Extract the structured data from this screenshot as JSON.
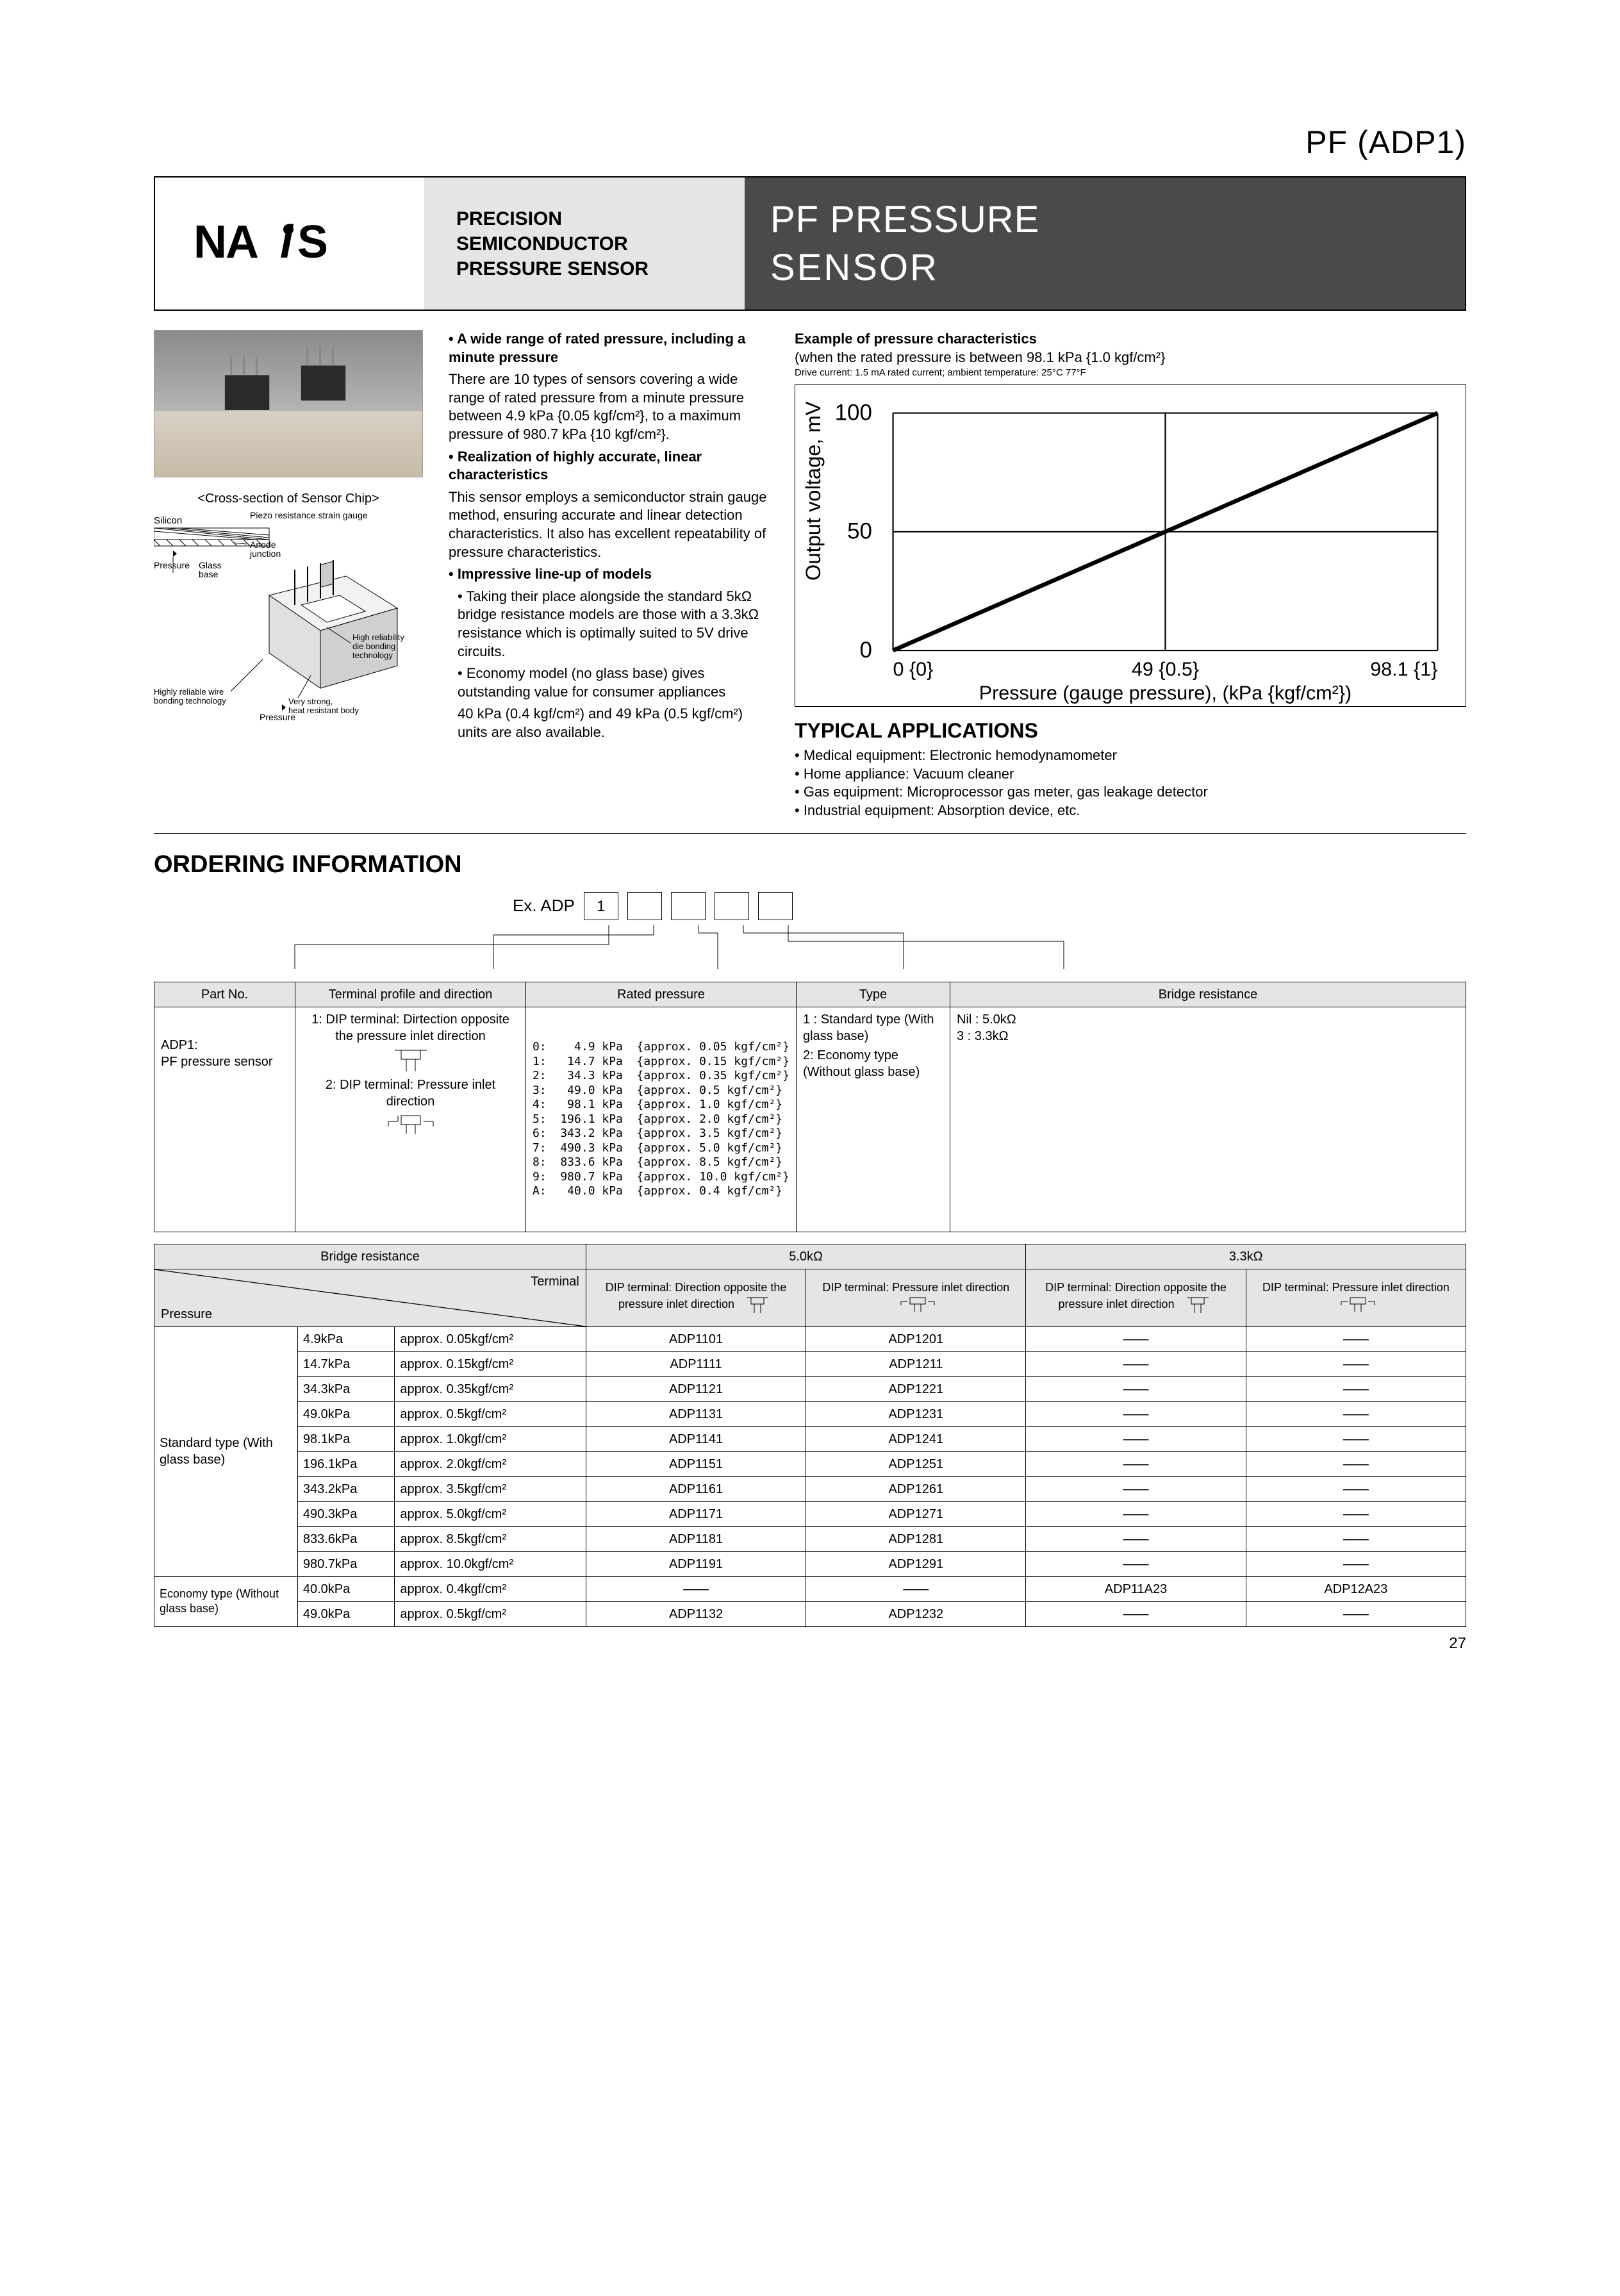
{
  "top_label": "PF (ADP1)",
  "subtitle": {
    "l1": "PRECISION",
    "l2": "SEMICONDUCTOR",
    "l3": "PRESSURE SENSOR"
  },
  "title": {
    "l1": "PF PRESSURE",
    "l2": "SENSOR"
  },
  "chip_label": "<Cross-section of Sensor Chip>",
  "diagram_labels": {
    "silicon": "Silicon",
    "piezo": "Piezo resistance strain gauge",
    "anode": "Anode junction",
    "pressure": "Pressure",
    "glass": "Glass base",
    "hr_die": "High reliability die bonding technology",
    "wire": "Highly reliable wire bonding technology",
    "strong": "Very strong, heat resistant body",
    "press2": "Pressure"
  },
  "features": {
    "f1_t": "• A wide range of rated pressure, including a minute pressure",
    "f1_b": "There are 10 types of sensors covering a wide range of rated pressure from a minute pressure between 4.9 kPa {0.05 kgf/cm²}, to a maximum pressure of 980.7 kPa {10 kgf/cm²}.",
    "f2_t": "• Realization of highly accurate, linear characteristics",
    "f2_b": "This sensor employs a semiconductor strain gauge method, ensuring accurate and linear detection characteristics. It also has excellent repeatability of pressure characteristics.",
    "f3_t": "• Impressive line-up of models",
    "f3_s1": "• Taking their place alongside the standard 5kΩ bridge resistance models are those with a 3.3kΩ resistance which is optimally suited to 5V drive circuits.",
    "f3_s2": "• Economy model (no glass base) gives outstanding value for consumer appliances",
    "f3_s3": "40 kPa (0.4 kgf/cm²) and 49 kPa (0.5 kgf/cm²) units are also available."
  },
  "example": {
    "title": "Example of pressure characteristics",
    "sub": "(when the rated pressure is between 98.1 kPa {1.0 kgf/cm²}",
    "cond": "Drive current: 1.5 mA rated current; ambient temperature: 25°C 77°F",
    "ylabel": "Output voltage, mV",
    "xlabel": "Pressure (gauge pressure), (kPa {kgf/cm²})",
    "yticks": [
      "0",
      "50",
      "100"
    ],
    "xticks": [
      "0 {0}",
      "49 {0.5}",
      "98.1 {1}"
    ]
  },
  "apps": {
    "title": "TYPICAL APPLICATIONS",
    "items": [
      "• Medical equipment: Electronic hemodynamometer",
      "• Home appliance: Vacuum cleaner",
      "• Gas equipment: Microprocessor gas meter, gas leakage detector",
      "• Industrial equipment: Absorption device, etc."
    ]
  },
  "ordering": {
    "title": "ORDERING INFORMATION",
    "ex_label": "Ex.  ADP",
    "box1": "1"
  },
  "info_table": {
    "headers": [
      "Part No.",
      "Terminal profile and direction",
      "Rated pressure",
      "Type",
      "Bridge resistance"
    ],
    "partno": {
      "l1": "ADP1:",
      "l2": "PF pressure sensor"
    },
    "term": {
      "t1": "1: DIP terminal: Dirtection opposite the pressure inlet direction",
      "t2": "2: DIP terminal: Pressure inlet direction"
    },
    "rated": [
      "0:    4.9 kPa  {approx. 0.05 kgf/cm²}",
      "1:   14.7 kPa  {approx. 0.15 kgf/cm²}",
      "2:   34.3 kPa  {approx. 0.35 kgf/cm²}",
      "3:   49.0 kPa  {approx. 0.5 kgf/cm²}",
      "4:   98.1 kPa  {approx. 1.0 kgf/cm²}",
      "5:  196.1 kPa  {approx. 2.0 kgf/cm²}",
      "6:  343.2 kPa  {approx. 3.5 kgf/cm²}",
      "7:  490.3 kPa  {approx. 5.0 kgf/cm²}",
      "8:  833.6 kPa  {approx. 8.5 kgf/cm²}",
      "9:  980.7 kPa  {approx. 10.0 kgf/cm²}",
      "A:   40.0 kPa  {approx. 0.4 kgf/cm²}"
    ],
    "type": {
      "t1": "1 : Standard type (With glass base)",
      "t2": "2: Economy type (Without glass base)"
    },
    "bridge": {
      "b1": "Nil : 5.0kΩ",
      "b2": "3 : 3.3kΩ"
    }
  },
  "product_table": {
    "top_headers": {
      "br": "Bridge resistance",
      "r5": "5.0kΩ",
      "r33": "3.3kΩ"
    },
    "row2": {
      "term": "Terminal",
      "press": "Pressure"
    },
    "term_heads": {
      "opp": "DIP terminal: Direction opposite the pressure inlet direction",
      "inlet": "DIP terminal: Pressure inlet direction"
    },
    "groups": {
      "std": "Standard type (With glass base)",
      "econ": "Economy type (Without glass base)"
    },
    "rows": [
      {
        "g": "std",
        "p": "4.9kPa",
        "a": "approx. 0.05kgf/cm²",
        "c1": "ADP1101",
        "c2": "ADP1201",
        "c3": "——",
        "c4": "——"
      },
      {
        "g": "std",
        "p": "14.7kPa",
        "a": "approx. 0.15kgf/cm²",
        "c1": "ADP1111",
        "c2": "ADP1211",
        "c3": "——",
        "c4": "——"
      },
      {
        "g": "std",
        "p": "34.3kPa",
        "a": "approx. 0.35kgf/cm²",
        "c1": "ADP1121",
        "c2": "ADP1221",
        "c3": "——",
        "c4": "——"
      },
      {
        "g": "std",
        "p": "49.0kPa",
        "a": "approx. 0.5kgf/cm²",
        "c1": "ADP1131",
        "c2": "ADP1231",
        "c3": "——",
        "c4": "——"
      },
      {
        "g": "std",
        "p": "98.1kPa",
        "a": "approx. 1.0kgf/cm²",
        "c1": "ADP1141",
        "c2": "ADP1241",
        "c3": "——",
        "c4": "——"
      },
      {
        "g": "std",
        "p": "196.1kPa",
        "a": "approx. 2.0kgf/cm²",
        "c1": "ADP1151",
        "c2": "ADP1251",
        "c3": "——",
        "c4": "——"
      },
      {
        "g": "std",
        "p": "343.2kPa",
        "a": "approx. 3.5kgf/cm²",
        "c1": "ADP1161",
        "c2": "ADP1261",
        "c3": "——",
        "c4": "——"
      },
      {
        "g": "std",
        "p": "490.3kPa",
        "a": "approx. 5.0kgf/cm²",
        "c1": "ADP1171",
        "c2": "ADP1271",
        "c3": "——",
        "c4": "——"
      },
      {
        "g": "std",
        "p": "833.6kPa",
        "a": "approx. 8.5kgf/cm²",
        "c1": "ADP1181",
        "c2": "ADP1281",
        "c3": "——",
        "c4": "——"
      },
      {
        "g": "std",
        "p": "980.7kPa",
        "a": "approx. 10.0kgf/cm²",
        "c1": "ADP1191",
        "c2": "ADP1291",
        "c3": "——",
        "c4": "——"
      },
      {
        "g": "econ",
        "p": "40.0kPa",
        "a": "approx. 0.4kgf/cm²",
        "c1": "——",
        "c2": "——",
        "c3": "ADP11A23",
        "c4": "ADP12A23"
      },
      {
        "g": "econ",
        "p": "49.0kPa",
        "a": "approx. 0.5kgf/cm²",
        "c1": "ADP1132",
        "c2": "ADP1232",
        "c3": "——",
        "c4": "——"
      }
    ]
  },
  "page_num": "27"
}
